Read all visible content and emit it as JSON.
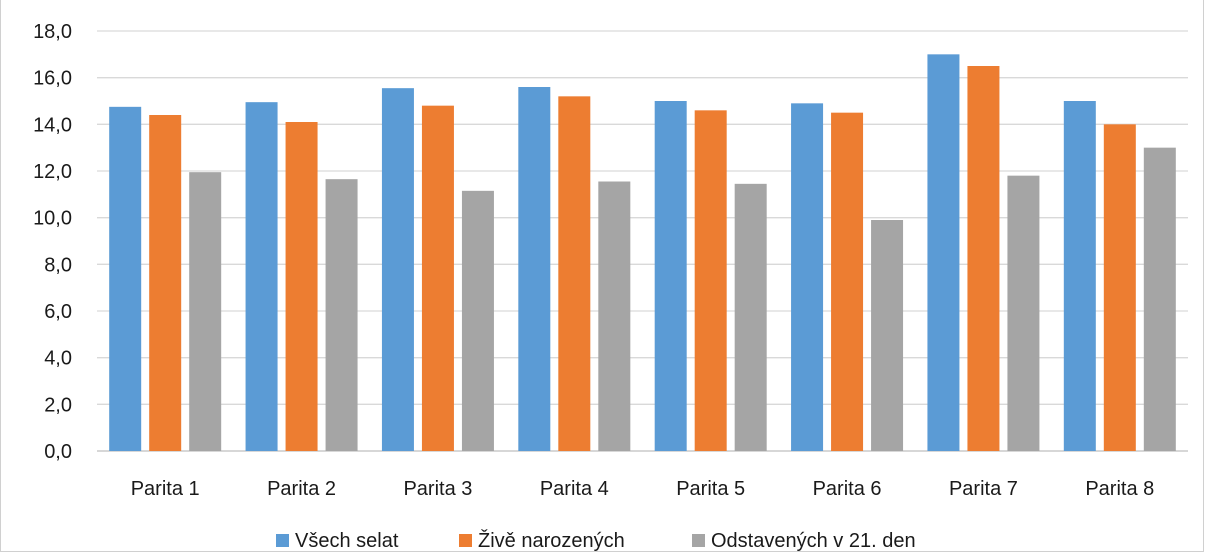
{
  "chart_data": {
    "type": "bar",
    "title": "",
    "xlabel": "",
    "ylabel": "",
    "ylim": [
      0,
      18
    ],
    "yticks": [
      "0,0",
      "2,0",
      "4,0",
      "6,0",
      "8,0",
      "10,0",
      "12,0",
      "14,0",
      "16,0",
      "18,0"
    ],
    "grid": true,
    "legend_position": "bottom",
    "categories": [
      "Parita 1",
      "Parita 2",
      "Parita 3",
      "Parita 4",
      "Parita 5",
      "Parita 6",
      "Parita 7",
      "Parita 8"
    ],
    "series": [
      {
        "name": "Všech selat",
        "color": "#5b9bd5",
        "values": [
          14.75,
          14.95,
          15.55,
          15.6,
          15.0,
          14.9,
          17.0,
          15.0
        ]
      },
      {
        "name": "Živě narozených",
        "color": "#ed7d31",
        "values": [
          14.4,
          14.1,
          14.8,
          15.2,
          14.6,
          14.5,
          16.5,
          14.0
        ]
      },
      {
        "name": "Odstavených v 21. den",
        "color": "#a5a5a5",
        "values": [
          11.95,
          11.65,
          11.15,
          11.55,
          11.45,
          9.9,
          11.8,
          13.0
        ]
      }
    ]
  }
}
